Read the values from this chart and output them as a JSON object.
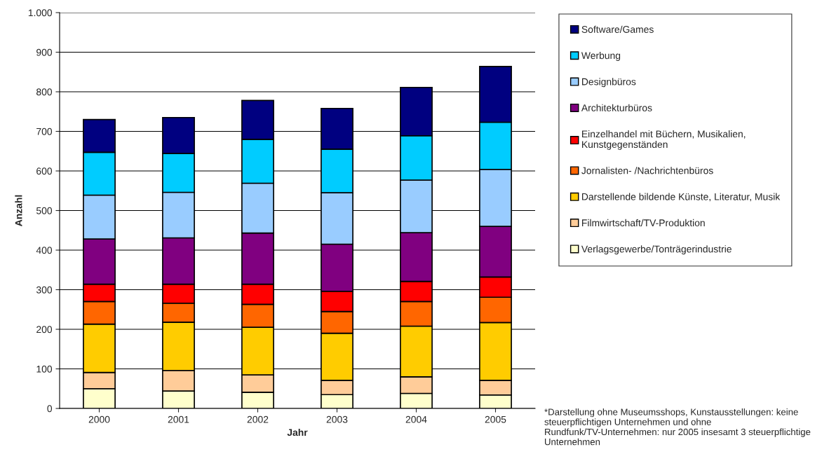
{
  "chart_data": {
    "type": "bar",
    "stacked": true,
    "xlabel": "Jahr",
    "ylabel": "Anzahl",
    "categories": [
      "2000",
      "2001",
      "2002",
      "2003",
      "2004",
      "2005"
    ],
    "series": [
      {
        "name": "Verlagsgewerbe/Tonträgerindustrie",
        "color": "#ffffcc",
        "values": [
          50,
          44,
          41,
          35,
          38,
          34
        ]
      },
      {
        "name": "Filmwirtschaft/TV-Produktion",
        "color": "#ffcc99",
        "values": [
          41,
          52,
          44,
          36,
          42,
          37
        ]
      },
      {
        "name": "Darstellende bildende Künste, Literatur, Musik",
        "color": "#ffcc00",
        "values": [
          122,
          122,
          120,
          119,
          128,
          146
        ]
      },
      {
        "name": "Jornalisten- /Nachrichtenbüros",
        "color": "#ff6600",
        "values": [
          57,
          48,
          58,
          55,
          62,
          64
        ]
      },
      {
        "name": "Einzelhandel mit Büchern, Musikalien,\nKunstgegenständen",
        "color": "#ff0000",
        "values": [
          44,
          48,
          51,
          51,
          51,
          51
        ]
      },
      {
        "name": "Architekturbüros",
        "color": "#800080",
        "values": [
          114,
          117,
          129,
          119,
          123,
          128
        ]
      },
      {
        "name": "Designbüros",
        "color": "#99ccff",
        "values": [
          111,
          115,
          126,
          130,
          133,
          144
        ]
      },
      {
        "name": "Werbung",
        "color": "#00ccff",
        "values": [
          108,
          98,
          111,
          110,
          112,
          119
        ]
      },
      {
        "name": "Software/Games",
        "color": "#000080",
        "values": [
          83,
          91,
          98,
          103,
          122,
          141
        ]
      }
    ],
    "ylim": [
      0,
      1000
    ],
    "yticks": [
      0,
      100,
      200,
      300,
      400,
      500,
      600,
      700,
      800,
      900,
      {
        "value": 1000,
        "label": "1.000"
      }
    ],
    "grid": "y",
    "legend": "right",
    "annotations": [
      "*Darstellung ohne Museumsshops, Kunstausstellungen: keine steuerpflichtigen Unternehmen und ohne Rundfunk/TV-Unternehmen: nur 2005 insesamt 3 steuerpflichtige Unternehmen"
    ]
  }
}
